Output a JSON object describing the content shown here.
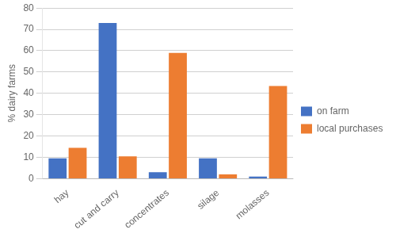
{
  "chart_data": {
    "type": "bar",
    "categories": [
      "hay",
      "cut and carry",
      "concentrates",
      "silage",
      "molasses"
    ],
    "series": [
      {
        "name": "on farm",
        "color": "#4472C4",
        "values": [
          9.5,
          73.0,
          3.0,
          9.5,
          1.0
        ]
      },
      {
        "name": "local purchases",
        "color": "#ED7D31",
        "values": [
          14.5,
          10.5,
          59.0,
          2.0,
          43.5
        ]
      }
    ],
    "ylabel": "% dairy farms",
    "ylim": [
      0,
      80
    ],
    "yticks": [
      0,
      10,
      20,
      30,
      40,
      50,
      60,
      70,
      80
    ],
    "grid": true,
    "legend": "right"
  }
}
